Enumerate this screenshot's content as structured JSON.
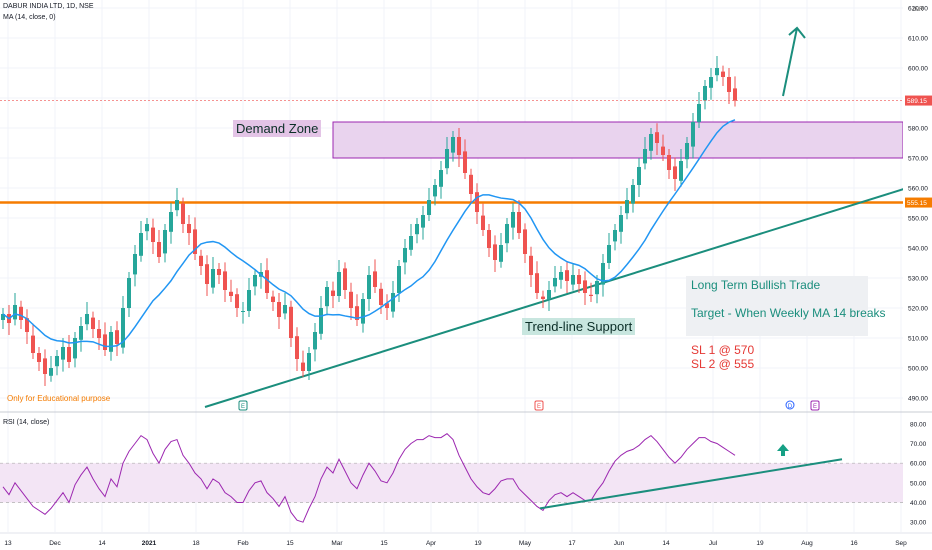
{
  "header": {
    "symbol_line": "DABUR INDIA LTD, 1D, NSE",
    "ma_line": "MA (14, close, 0)",
    "rsi_line": "RSI (14, close)",
    "currency": "INR",
    "edu_note": "Only for Educational purpose"
  },
  "annotations": {
    "demand_zone": "Demand Zone",
    "trendline_support": "Trend-line Support",
    "bullish_title": "Long Term Bullish Trade",
    "target": "Target - When Weekly MA 14 breaks",
    "sl1": "SL 1 @ 570",
    "sl2": "SL 2 @ 555"
  },
  "colors": {
    "up": "#26a69a",
    "down": "#ef5350",
    "ma": "#2196f3",
    "trend": "#1b8e7d",
    "demand_fill": "#e9d3ee",
    "demand_border": "#9c27b0",
    "support_line": "#f57c00",
    "rsi_line": "#9c27b0",
    "rsi_band": "#f3e5f5"
  },
  "chart_data": {
    "type": "candlestick",
    "price_axis": {
      "ticks": [
        "620.00",
        "610.00",
        "600.00",
        "590.00",
        "580.00",
        "570.00",
        "560.00",
        "550.00",
        "540.00",
        "530.00",
        "520.00",
        "510.00",
        "500.00",
        "490.00"
      ],
      "range": [
        486,
        622
      ],
      "last_price_label": "589.15",
      "support_label": "555.15"
    },
    "rsi_axis": {
      "ticks": [
        "80.00",
        "70.00",
        "60.00",
        "50.00",
        "40.00",
        "30.00"
      ],
      "range": [
        25,
        85
      ],
      "band": [
        40,
        60
      ]
    },
    "x_ticks": [
      "13",
      "Dec",
      "14",
      "2021",
      "18",
      "Feb",
      "15",
      "Mar",
      "15",
      "Apr",
      "19",
      "May",
      "17",
      "Jun",
      "14",
      "Jul",
      "19",
      "Aug",
      "16",
      "Sep"
    ],
    "event_markers": [
      "E",
      "E",
      "D",
      "E"
    ],
    "support_level": 555.15,
    "demand_zone": [
      570,
      582
    ],
    "closes": [
      518,
      515,
      521,
      516,
      512,
      505,
      502,
      498,
      500,
      504,
      507,
      502,
      510,
      514,
      518,
      513,
      510,
      506,
      512,
      508,
      520,
      530,
      538,
      545,
      548,
      542,
      537,
      546,
      552,
      556,
      548,
      545,
      538,
      534,
      528,
      533,
      531,
      526,
      524,
      520,
      519,
      526,
      531,
      532,
      525,
      522,
      517,
      521,
      510,
      503,
      499,
      505,
      512,
      520,
      527,
      524,
      532,
      526,
      520,
      516,
      523,
      531,
      527,
      521,
      520,
      525,
      534,
      540,
      544,
      548,
      551,
      556,
      561,
      566,
      573,
      577,
      571,
      565,
      558,
      552,
      546,
      540,
      536,
      541,
      548,
      552,
      545,
      538,
      531,
      525,
      523,
      526,
      530,
      532,
      529,
      531,
      528,
      525,
      524,
      529,
      535,
      541,
      546,
      551,
      556,
      561,
      567,
      573,
      578,
      575,
      571,
      566,
      563,
      569,
      575,
      582,
      588,
      594,
      597,
      600,
      597,
      592,
      589.15
    ],
    "rsi": [
      48,
      44,
      50,
      46,
      42,
      38,
      36,
      34,
      37,
      41,
      45,
      40,
      49,
      54,
      58,
      52,
      47,
      43,
      52,
      48,
      60,
      66,
      70,
      74,
      72,
      65,
      60,
      67,
      71,
      72,
      64,
      60,
      55,
      52,
      47,
      52,
      50,
      45,
      43,
      40,
      40,
      46,
      50,
      51,
      45,
      42,
      38,
      43,
      35,
      31,
      30,
      37,
      43,
      52,
      58,
      55,
      62,
      56,
      50,
      47,
      54,
      60,
      56,
      51,
      50,
      55,
      62,
      67,
      70,
      72,
      72,
      74,
      73,
      73,
      75,
      72,
      64,
      58,
      52,
      48,
      45,
      44,
      47,
      51,
      52,
      52,
      47,
      44,
      41,
      38,
      36,
      41,
      44,
      45,
      43,
      45,
      43,
      41,
      41,
      46,
      50,
      56,
      61,
      64,
      66,
      67,
      69,
      72,
      74,
      71,
      67,
      63,
      60,
      63,
      67,
      70,
      73,
      73,
      71,
      70,
      68,
      66,
      64
    ]
  }
}
